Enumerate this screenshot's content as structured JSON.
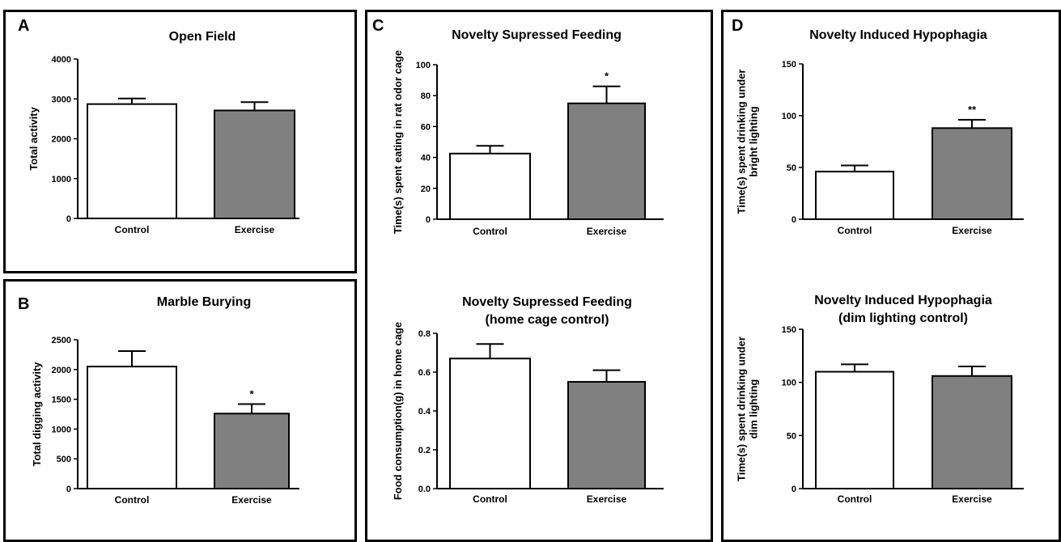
{
  "colors": {
    "control": "#ffffff",
    "exercise": "#808080",
    "stroke": "#000000"
  },
  "chart_data": [
    {
      "letter": "A",
      "type": "bar",
      "title": [
        "Open Field"
      ],
      "ylabel": [
        "Total activity"
      ],
      "categories": [
        "Control",
        "Exercise"
      ],
      "values": [
        2870,
        2710
      ],
      "errors": [
        140,
        210
      ],
      "significance": [
        "",
        ""
      ],
      "ylim": [
        0,
        4000
      ],
      "yticks": [
        0,
        1000,
        2000,
        3000,
        4000
      ],
      "ytick_labels": [
        "0",
        "1000",
        "2000",
        "3000",
        "4000"
      ],
      "grid": false,
      "legend": "none"
    },
    {
      "letter": "B",
      "type": "bar",
      "title": [
        "Marble Burying"
      ],
      "ylabel": [
        "Total digging activity"
      ],
      "categories": [
        "Control",
        "Exercise"
      ],
      "values": [
        2050,
        1260
      ],
      "errors": [
        260,
        160
      ],
      "significance": [
        "",
        "*"
      ],
      "ylim": [
        0,
        2500
      ],
      "yticks": [
        0,
        500,
        1000,
        1500,
        2000,
        2500
      ],
      "ytick_labels": [
        "0",
        "500",
        "1000",
        "1500",
        "2000",
        "2500"
      ],
      "grid": false,
      "legend": "none"
    },
    {
      "letter": "C",
      "type": "bar",
      "title": [
        "Novelty Supressed Feeding"
      ],
      "ylabel": [
        "Time(s) spent eating in rat odor cage"
      ],
      "categories": [
        "Control",
        "Exercise"
      ],
      "values": [
        42.5,
        75
      ],
      "errors": [
        5,
        11
      ],
      "significance": [
        "",
        "*"
      ],
      "ylim": [
        0,
        100
      ],
      "yticks": [
        0,
        20,
        40,
        60,
        80,
        100
      ],
      "ytick_labels": [
        "0",
        "20",
        "40",
        "60",
        "80",
        "100"
      ],
      "grid": false,
      "legend": "none"
    },
    {
      "letter": "",
      "type": "bar",
      "title": [
        "Novelty Supressed Feeding",
        "(home cage control)"
      ],
      "ylabel": [
        "Food consumption(g) in home cage"
      ],
      "categories": [
        "Control",
        "Exercise"
      ],
      "values": [
        0.67,
        0.55
      ],
      "errors": [
        0.075,
        0.06
      ],
      "significance": [
        "",
        ""
      ],
      "ylim": [
        0,
        0.8
      ],
      "yticks": [
        0,
        0.2,
        0.4,
        0.6,
        0.8
      ],
      "ytick_labels": [
        "0.0",
        "0.2",
        "0.4",
        "0.6",
        "0.8"
      ],
      "grid": false,
      "legend": "none"
    },
    {
      "letter": "D",
      "type": "bar",
      "title": [
        "Novelty Induced Hypophagia"
      ],
      "ylabel": [
        "Time(s) spent drinking under",
        "bright lighting"
      ],
      "categories": [
        "Control",
        "Exercise"
      ],
      "values": [
        46,
        88
      ],
      "errors": [
        6,
        8
      ],
      "significance": [
        "",
        "**"
      ],
      "ylim": [
        0,
        150
      ],
      "yticks": [
        0,
        50,
        100,
        150
      ],
      "ytick_labels": [
        "0",
        "50",
        "100",
        "150"
      ],
      "grid": false,
      "legend": "none"
    },
    {
      "letter": "",
      "type": "bar",
      "title": [
        "Novelty Induced Hypophagia",
        "(dim lighting control)"
      ],
      "ylabel": [
        "Time(s) spent drinking under",
        "dim lighting"
      ],
      "categories": [
        "Control",
        "Exercise"
      ],
      "values": [
        110,
        106
      ],
      "errors": [
        7,
        9
      ],
      "significance": [
        "",
        ""
      ],
      "ylim": [
        0,
        150
      ],
      "yticks": [
        0,
        50,
        100,
        150
      ],
      "ytick_labels": [
        "0",
        "50",
        "100",
        "150"
      ],
      "grid": false,
      "legend": "none"
    }
  ]
}
